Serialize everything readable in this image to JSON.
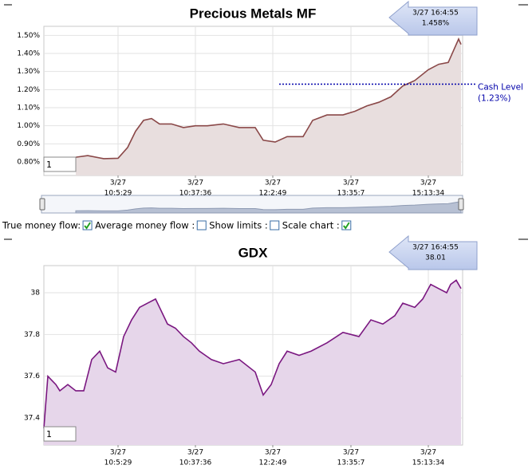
{
  "chart_data": [
    {
      "type": "line",
      "title": "Precious Metals MF",
      "xlim": [
        0,
        105
      ],
      "ylim": [
        0.725,
        1.55
      ],
      "xticks": [
        {
          "value": 18.6,
          "label": [
            "3/27",
            "10:5:29"
          ]
        },
        {
          "value": 38,
          "label": [
            "3/27",
            "10:37:36"
          ]
        },
        {
          "value": 57.4,
          "label": [
            "3/27",
            "12:2:49"
          ]
        },
        {
          "value": 77,
          "label": [
            "3/27",
            "13:35:7"
          ]
        },
        {
          "value": 96.4,
          "label": [
            "3/27",
            "15:13:34"
          ]
        }
      ],
      "yticks": [
        {
          "value": 0.8,
          "label": "0.80%"
        },
        {
          "value": 0.9,
          "label": "0.90%"
        },
        {
          "value": 1.0,
          "label": "1.00%"
        },
        {
          "value": 1.1,
          "label": "1.10%"
        },
        {
          "value": 1.2,
          "label": "1.20%"
        },
        {
          "value": 1.3,
          "label": "1.30%"
        },
        {
          "value": 1.4,
          "label": "1.40%"
        },
        {
          "value": 1.5,
          "label": "1.50%"
        }
      ],
      "grid": true,
      "series": [
        {
          "color": "#8a4848",
          "fill": "#e8dede",
          "x": [
            8,
            11,
            15,
            18.6,
            21,
            23,
            25,
            27,
            29,
            32,
            35,
            38,
            41,
            45,
            49,
            53,
            55,
            58,
            61,
            65,
            67.4,
            71,
            75,
            78,
            81,
            84,
            87,
            90,
            93,
            96.4,
            99,
            101.4,
            103,
            104,
            104.6
          ],
          "values": [
            0.826,
            0.835,
            0.818,
            0.82,
            0.88,
            0.97,
            1.03,
            1.04,
            1.01,
            1.01,
            0.99,
            1.0,
            1.0,
            1.01,
            0.99,
            0.99,
            0.92,
            0.91,
            0.94,
            0.94,
            1.03,
            1.06,
            1.06,
            1.08,
            1.11,
            1.13,
            1.16,
            1.22,
            1.25,
            1.31,
            1.34,
            1.35,
            1.43,
            1.48,
            1.45
          ]
        }
      ],
      "annotation": {
        "text": "Cash Level",
        "value": 1.23,
        "value_label": "(1.23%)"
      },
      "tooltip": [
        "3/27 16:4:55",
        "1.458%"
      ],
      "input": "1"
    },
    {
      "type": "line",
      "title": "GDX",
      "xlim": [
        0,
        105
      ],
      "ylim": [
        37.27,
        38.13
      ],
      "xticks": [
        {
          "value": 18.6,
          "label": [
            "3/27",
            "10:5:29"
          ]
        },
        {
          "value": 38,
          "label": [
            "3/27",
            "10:37:36"
          ]
        },
        {
          "value": 57.4,
          "label": [
            "3/27",
            "12:2:49"
          ]
        },
        {
          "value": 77,
          "label": [
            "3/27",
            "13:35:7"
          ]
        },
        {
          "value": 96.4,
          "label": [
            "3/27",
            "15:13:34"
          ]
        }
      ],
      "yticks": [
        37.4,
        37.6,
        37.8,
        38
      ],
      "grid": true,
      "series": [
        {
          "color": "#7a1780",
          "fill": "#e6d6ea",
          "x": [
            0,
            1,
            2,
            3,
            4,
            6,
            8,
            10,
            12,
            14,
            16,
            18,
            20,
            22,
            24,
            26,
            28,
            29,
            31,
            33,
            35,
            37,
            39,
            42,
            45,
            49,
            53,
            55,
            57,
            59,
            61,
            64,
            67,
            71,
            75,
            79,
            82,
            85,
            88,
            90,
            93,
            95,
            97,
            99,
            101,
            102,
            103.4,
            104.6
          ],
          "values": [
            37.35,
            37.6,
            37.58,
            37.56,
            37.53,
            37.56,
            37.53,
            37.53,
            37.68,
            37.72,
            37.64,
            37.62,
            37.79,
            37.87,
            37.93,
            37.95,
            37.97,
            37.93,
            37.85,
            37.83,
            37.79,
            37.76,
            37.72,
            37.68,
            37.66,
            37.68,
            37.62,
            37.51,
            37.56,
            37.66,
            37.72,
            37.7,
            37.72,
            37.76,
            37.81,
            37.79,
            37.87,
            37.85,
            37.89,
            37.95,
            37.93,
            37.97,
            38.04,
            38.02,
            38.0,
            38.04,
            38.06,
            38.02
          ]
        }
      ],
      "tooltip": [
        "3/27 16:4:55",
        "38.01"
      ],
      "input": "1"
    }
  ],
  "controls": [
    {
      "label": "True money flow:",
      "checked": true
    },
    {
      "label": "Average money flow :",
      "checked": false
    },
    {
      "label": "Show limits :",
      "checked": false
    },
    {
      "label": "Scale chart :",
      "checked": true
    }
  ]
}
